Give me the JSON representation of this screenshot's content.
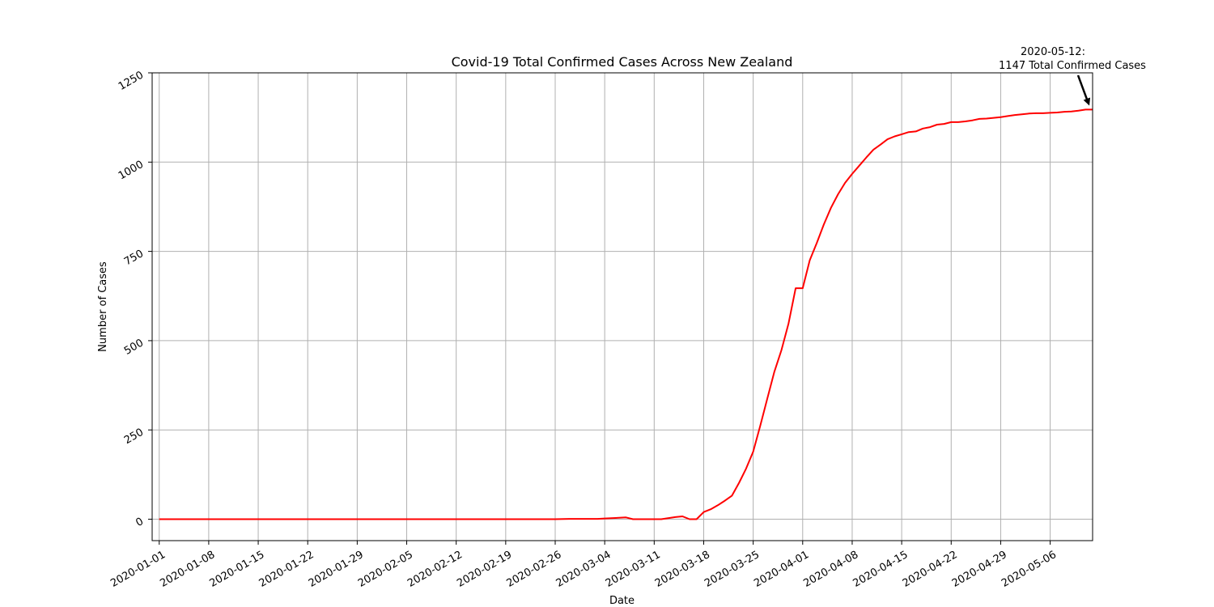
{
  "chart_data": {
    "type": "line",
    "title": "Covid-19 Total Confirmed Cases Across New Zealand",
    "xlabel": "Date",
    "ylabel": "Number of Cases",
    "grid": true,
    "line_color": "#ff0000",
    "xlim": [
      "2019-12-31",
      "2020-05-12"
    ],
    "ylim": [
      -60,
      1250
    ],
    "x_ticks": [
      "2020-01-01",
      "2020-01-08",
      "2020-01-15",
      "2020-01-22",
      "2020-01-29",
      "2020-02-05",
      "2020-02-12",
      "2020-02-19",
      "2020-02-26",
      "2020-03-04",
      "2020-03-11",
      "2020-03-18",
      "2020-03-25",
      "2020-04-01",
      "2020-04-08",
      "2020-04-15",
      "2020-04-22",
      "2020-04-29",
      "2020-05-06"
    ],
    "y_ticks": [
      0,
      250,
      500,
      750,
      1000,
      1250
    ],
    "series": [
      {
        "points": [
          [
            "2020-01-01",
            0
          ],
          [
            "2020-02-26",
            0
          ],
          [
            "2020-02-28",
            1
          ],
          [
            "2020-03-03",
            1
          ],
          [
            "2020-03-04",
            2
          ],
          [
            "2020-03-06",
            4
          ],
          [
            "2020-03-07",
            5
          ],
          [
            "2020-03-08",
            0
          ],
          [
            "2020-03-12",
            0
          ],
          [
            "2020-03-14",
            6
          ],
          [
            "2020-03-15",
            8
          ],
          [
            "2020-03-16",
            0
          ],
          [
            "2020-03-17",
            0
          ],
          [
            "2020-03-18",
            20
          ],
          [
            "2020-03-19",
            28
          ],
          [
            "2020-03-20",
            39
          ],
          [
            "2020-03-21",
            52
          ],
          [
            "2020-03-22",
            66
          ],
          [
            "2020-03-23",
            102
          ],
          [
            "2020-03-24",
            142
          ],
          [
            "2020-03-25",
            189
          ],
          [
            "2020-03-26",
            262
          ],
          [
            "2020-03-27",
            338
          ],
          [
            "2020-03-28",
            413
          ],
          [
            "2020-03-29",
            474
          ],
          [
            "2020-03-30",
            548
          ],
          [
            "2020-03-31",
            647
          ],
          [
            "2020-04-01",
            647
          ],
          [
            "2020-04-02",
            725
          ],
          [
            "2020-04-03",
            774
          ],
          [
            "2020-04-04",
            826
          ],
          [
            "2020-04-05",
            872
          ],
          [
            "2020-04-06",
            910
          ],
          [
            "2020-04-07",
            942
          ],
          [
            "2020-04-08",
            967
          ],
          [
            "2020-04-09",
            990
          ],
          [
            "2020-04-10",
            1013
          ],
          [
            "2020-04-11",
            1035
          ],
          [
            "2020-04-12",
            1049
          ],
          [
            "2020-04-13",
            1064
          ],
          [
            "2020-04-14",
            1072
          ],
          [
            "2020-04-15",
            1078
          ],
          [
            "2020-04-16",
            1084
          ],
          [
            "2020-04-17",
            1086
          ],
          [
            "2020-04-18",
            1094
          ],
          [
            "2020-04-19",
            1098
          ],
          [
            "2020-04-20",
            1105
          ],
          [
            "2020-04-21",
            1107
          ],
          [
            "2020-04-22",
            1112
          ],
          [
            "2020-04-23",
            1112
          ],
          [
            "2020-04-24",
            1114
          ],
          [
            "2020-04-25",
            1117
          ],
          [
            "2020-04-26",
            1121
          ],
          [
            "2020-04-27",
            1122
          ],
          [
            "2020-04-28",
            1124
          ],
          [
            "2020-04-29",
            1126
          ],
          [
            "2020-04-30",
            1129
          ],
          [
            "2020-05-01",
            1132
          ],
          [
            "2020-05-02",
            1134
          ],
          [
            "2020-05-03",
            1136
          ],
          [
            "2020-05-04",
            1137
          ],
          [
            "2020-05-05",
            1137
          ],
          [
            "2020-05-06",
            1138
          ],
          [
            "2020-05-07",
            1139
          ],
          [
            "2020-05-08",
            1141
          ],
          [
            "2020-05-09",
            1142
          ],
          [
            "2020-05-10",
            1144
          ],
          [
            "2020-05-11",
            1147
          ],
          [
            "2020-05-12",
            1147
          ]
        ]
      }
    ],
    "annotation": {
      "line1": "2020-05-12:",
      "line2": "1147 Total Confirmed Cases",
      "x": "2020-05-12",
      "y": 1147
    }
  }
}
